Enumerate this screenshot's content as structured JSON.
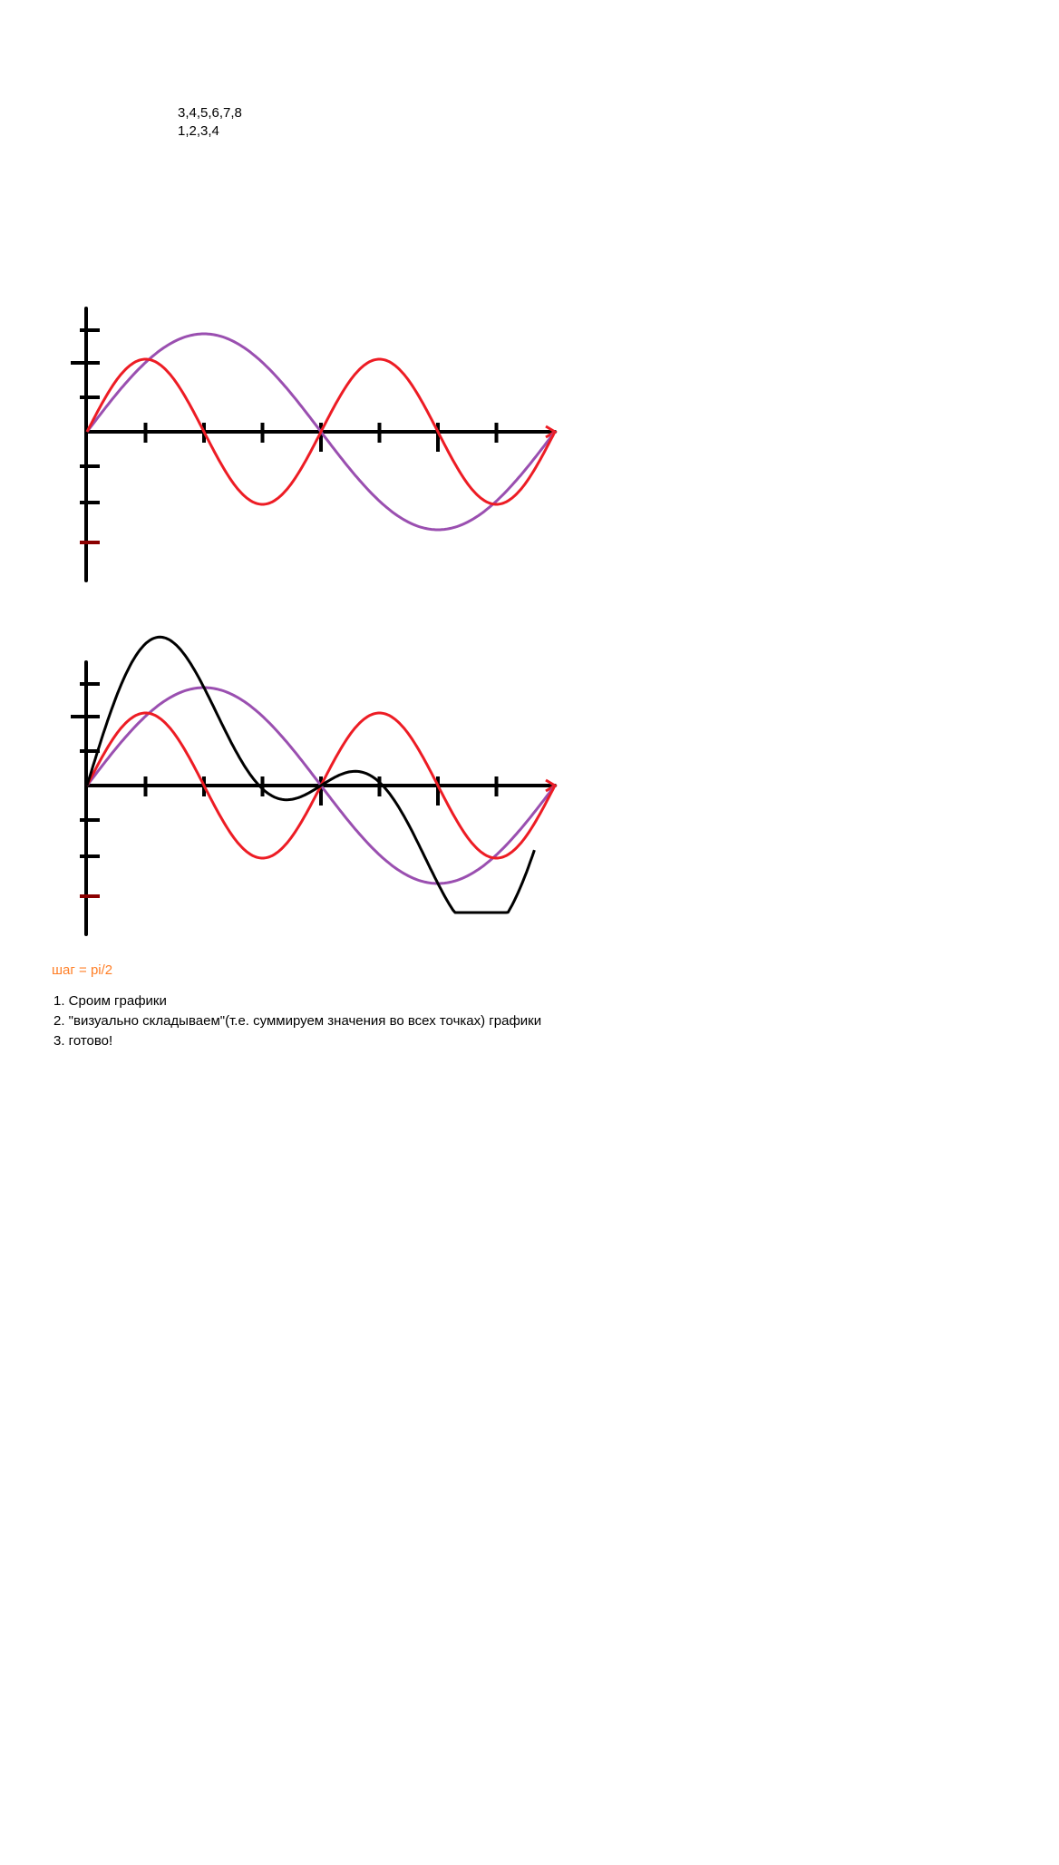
{
  "colors": {
    "axes": "#000000",
    "series_sin": "#9a4fb0",
    "series_fast": "#ed1c24",
    "series_sum": "#000000",
    "step_label": "#ff7f27"
  },
  "texts": {
    "numbers_line_1": "3,4,5,6,7,8",
    "numbers_line_2": "1,2,3,4",
    "step_label": "шаг = pi/2",
    "steps": [
      "1. Сроим графики",
      "2. \"визуально складываем\"(т.е. суммируем значения во всех точках) графики",
      "3. готово!"
    ]
  },
  "chart_data": [
    {
      "type": "line",
      "title": "",
      "xlabel": "",
      "ylabel": "",
      "grid": false,
      "xlim": [
        0,
        8
      ],
      "ylim": [
        -3.5,
        3.5
      ],
      "x_ticks": [
        1,
        2,
        3,
        4,
        5,
        6,
        7
      ],
      "y_ticks": [
        3,
        2,
        1,
        -1,
        -2,
        -3
      ],
      "series": [
        {
          "color": "#9a4fb0",
          "kind": "sin",
          "amplitude": 2.7,
          "cycles": 1
        },
        {
          "color": "#ed1c24",
          "kind": "sin",
          "amplitude": 2.0,
          "cycles": 2
        }
      ]
    },
    {
      "type": "line",
      "title": "",
      "xlabel": "",
      "ylabel": "",
      "grid": false,
      "xlim": [
        0,
        8
      ],
      "ylim": [
        -3.5,
        3.5
      ],
      "x_ticks": [
        1,
        2,
        3,
        4,
        5,
        6,
        7
      ],
      "y_ticks": [
        3,
        2,
        1,
        -1,
        -2,
        -3
      ],
      "series": [
        {
          "color": "#9a4fb0",
          "kind": "sin",
          "amplitude": 2.7,
          "cycles": 1
        },
        {
          "color": "#ed1c24",
          "kind": "sin",
          "amplitude": 2.0,
          "cycles": 2
        },
        {
          "color": "#000000",
          "kind": "sum",
          "partial_to": 3.8
        }
      ]
    }
  ]
}
